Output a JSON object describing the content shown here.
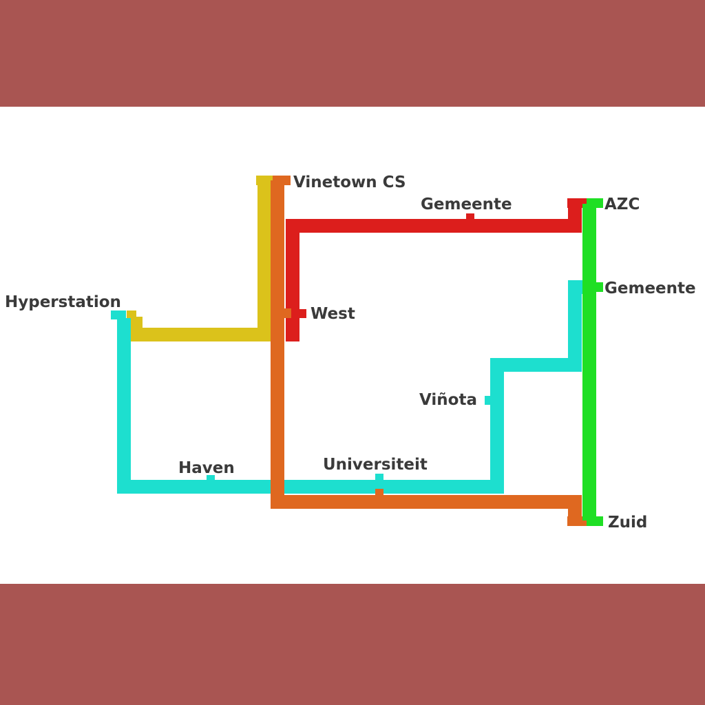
{
  "colors": {
    "frame": "#a95552",
    "background": "#ffffff",
    "label": "#3a3a3a"
  },
  "lines": {
    "yellow": {
      "color": "#dbc21b"
    },
    "orange": {
      "color": "#df6820"
    },
    "red": {
      "color": "#dc1e1c"
    },
    "green": {
      "color": "#1fdf24"
    },
    "cyan": {
      "color": "#1ddfcf"
    }
  },
  "stations": {
    "vinetown_cs": "Vinetown CS",
    "gemeente_red": "Gemeente",
    "azc": "AZC",
    "gemeente_green": "Gemeente",
    "hyperstation": "Hyperstation",
    "west": "West",
    "vinota": "Viñota",
    "haven": "Haven",
    "universiteit": "Universiteit",
    "zuid": "Zuid"
  }
}
